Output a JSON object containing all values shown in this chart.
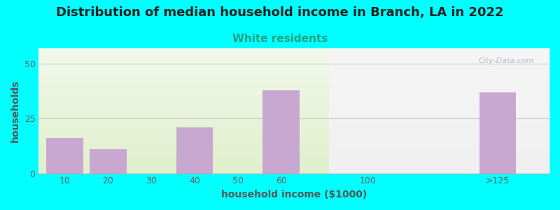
{
  "title": "Distribution of median household income in Branch, LA in 2022",
  "subtitle": "White residents",
  "xlabel": "household income ($1000)",
  "ylabel": "households",
  "title_fontsize": 13,
  "subtitle_fontsize": 11,
  "label_fontsize": 10,
  "tick_fontsize": 9,
  "bar_categories": [
    "10",
    "20",
    "30",
    "40",
    "50",
    "60",
    "100",
    ">125"
  ],
  "bar_values": [
    16,
    11,
    0,
    21,
    0,
    38,
    0,
    37
  ],
  "bar_color": "#c8a8d0",
  "background_outer": "#00ffff",
  "background_inner_left": "#e0f0cc",
  "background_inner_right": "#f0f0f0",
  "ylim": [
    0,
    57
  ],
  "yticks": [
    0,
    25,
    50
  ],
  "grid_color": "#cccccc",
  "subtitle_color": "#20a080",
  "title_color": "#222222",
  "watermark": "City-Data.com",
  "watermark_color": "#b0b0be",
  "positions": [
    0,
    1,
    2,
    3,
    4,
    5,
    7,
    10
  ],
  "bar_width": 0.85,
  "xlim": [
    -0.6,
    11.2
  ]
}
